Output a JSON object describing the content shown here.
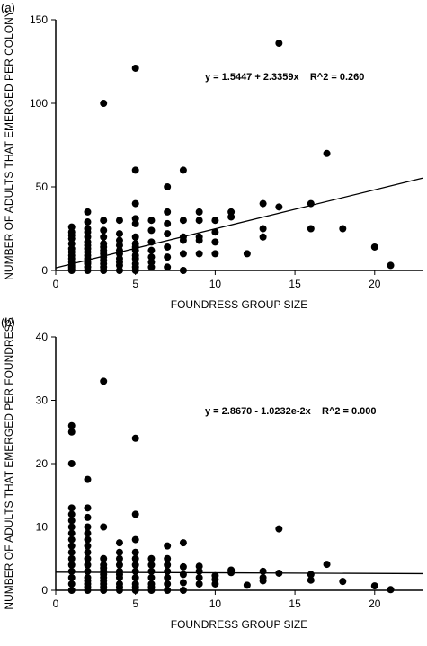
{
  "chart_data": [
    {
      "type": "scatter",
      "panel_label": "(a)",
      "xlabel": "FOUNDRESS GROUP SIZE",
      "ylabel": "NUMBER OF ADULTS THAT EMERGED PER COLONY",
      "xlim": [
        0,
        23
      ],
      "ylim": [
        0,
        150
      ],
      "x_ticks": [
        0,
        5,
        10,
        15,
        20
      ],
      "y_ticks": [
        0,
        50,
        100,
        150
      ],
      "grid": false,
      "fit_line": {
        "intercept": 1.5447,
        "slope": 2.3359
      },
      "annotation": "y = 1.5447 + 2.3359x    R^2 = 0.260",
      "points": [
        [
          1,
          0
        ],
        [
          1,
          1
        ],
        [
          1,
          2
        ],
        [
          1,
          3
        ],
        [
          1,
          5
        ],
        [
          1,
          7
        ],
        [
          1,
          9
        ],
        [
          1,
          11
        ],
        [
          1,
          13
        ],
        [
          1,
          16
        ],
        [
          1,
          19
        ],
        [
          1,
          21
        ],
        [
          1,
          23
        ],
        [
          1,
          26
        ],
        [
          2,
          0
        ],
        [
          2,
          2
        ],
        [
          2,
          4
        ],
        [
          2,
          5
        ],
        [
          2,
          7
        ],
        [
          2,
          9
        ],
        [
          2,
          11
        ],
        [
          2,
          13
        ],
        [
          2,
          15
        ],
        [
          2,
          17
        ],
        [
          2,
          20
        ],
        [
          2,
          23
        ],
        [
          2,
          25
        ],
        [
          2,
          29
        ],
        [
          2,
          35
        ],
        [
          3,
          0
        ],
        [
          3,
          2
        ],
        [
          3,
          4
        ],
        [
          3,
          6
        ],
        [
          3,
          8
        ],
        [
          3,
          10
        ],
        [
          3,
          12
        ],
        [
          3,
          14
        ],
        [
          3,
          16
        ],
        [
          3,
          20
        ],
        [
          3,
          24
        ],
        [
          3,
          30
        ],
        [
          3,
          100
        ],
        [
          4,
          0
        ],
        [
          4,
          3
        ],
        [
          4,
          5
        ],
        [
          4,
          7
        ],
        [
          4,
          10
        ],
        [
          4,
          12
        ],
        [
          4,
          15
        ],
        [
          4,
          18
        ],
        [
          4,
          22
        ],
        [
          4,
          30
        ],
        [
          5,
          0
        ],
        [
          5,
          2
        ],
        [
          5,
          4
        ],
        [
          5,
          7
        ],
        [
          5,
          9
        ],
        [
          5,
          12
        ],
        [
          5,
          14
        ],
        [
          5,
          16
        ],
        [
          5,
          20
        ],
        [
          5,
          28
        ],
        [
          5,
          31
        ],
        [
          5,
          40
        ],
        [
          5,
          60
        ],
        [
          5,
          121
        ],
        [
          6,
          2
        ],
        [
          6,
          5
        ],
        [
          6,
          8
        ],
        [
          6,
          12
        ],
        [
          6,
          17
        ],
        [
          6,
          24
        ],
        [
          6,
          30
        ],
        [
          7,
          2
        ],
        [
          7,
          8
        ],
        [
          7,
          14
        ],
        [
          7,
          22
        ],
        [
          7,
          28
        ],
        [
          7,
          35
        ],
        [
          7,
          50
        ],
        [
          8,
          0
        ],
        [
          8,
          10
        ],
        [
          8,
          18
        ],
        [
          8,
          20
        ],
        [
          8,
          30
        ],
        [
          8,
          60
        ],
        [
          9,
          10
        ],
        [
          9,
          18
        ],
        [
          9,
          20
        ],
        [
          9,
          30
        ],
        [
          9,
          35
        ],
        [
          10,
          10
        ],
        [
          10,
          17
        ],
        [
          10,
          23
        ],
        [
          10,
          30
        ],
        [
          11,
          32
        ],
        [
          11,
          35
        ],
        [
          12,
          10
        ],
        [
          13,
          20
        ],
        [
          13,
          25
        ],
        [
          13,
          40
        ],
        [
          14,
          38
        ],
        [
          14,
          136
        ],
        [
          16,
          25
        ],
        [
          16,
          40
        ],
        [
          17,
          70
        ],
        [
          18,
          25
        ],
        [
          20,
          14
        ],
        [
          21,
          3
        ]
      ]
    },
    {
      "type": "scatter",
      "panel_label": "(b)",
      "xlabel": "FOUNDRESS GROUP SIZE",
      "ylabel": "NUMBER OF ADULTS THAT EMERGED PER FOUNDRESS",
      "xlim": [
        0,
        23
      ],
      "ylim": [
        0,
        40
      ],
      "x_ticks": [
        0,
        5,
        10,
        15,
        20
      ],
      "y_ticks": [
        0,
        10,
        20,
        30,
        40
      ],
      "grid": false,
      "fit_line": {
        "intercept": 2.867,
        "slope": -0.010232
      },
      "annotation": "y = 2.8670 - 1.0232e-2x    R^2 = 0.000",
      "points": [
        [
          1,
          0
        ],
        [
          1,
          1
        ],
        [
          1,
          2
        ],
        [
          1,
          3
        ],
        [
          1,
          4
        ],
        [
          1,
          5
        ],
        [
          1,
          6
        ],
        [
          1,
          7
        ],
        [
          1,
          8
        ],
        [
          1,
          9
        ],
        [
          1,
          10
        ],
        [
          1,
          11
        ],
        [
          1,
          12
        ],
        [
          1,
          13
        ],
        [
          1,
          20
        ],
        [
          1,
          25
        ],
        [
          1,
          26
        ],
        [
          2,
          0
        ],
        [
          2,
          0.5
        ],
        [
          2,
          1
        ],
        [
          2,
          1.5
        ],
        [
          2,
          2
        ],
        [
          2,
          3
        ],
        [
          2,
          4
        ],
        [
          2,
          5
        ],
        [
          2,
          6
        ],
        [
          2,
          7
        ],
        [
          2,
          8
        ],
        [
          2,
          9
        ],
        [
          2,
          10
        ],
        [
          2,
          11.5
        ],
        [
          2,
          13
        ],
        [
          2,
          17.5
        ],
        [
          3,
          0
        ],
        [
          3,
          0.5
        ],
        [
          3,
          1
        ],
        [
          3,
          1.5
        ],
        [
          3,
          2
        ],
        [
          3,
          2.5
        ],
        [
          3,
          3
        ],
        [
          3,
          3.5
        ],
        [
          3,
          4
        ],
        [
          3,
          5
        ],
        [
          3,
          10
        ],
        [
          3,
          33
        ],
        [
          4,
          0
        ],
        [
          4,
          0.5
        ],
        [
          4,
          1
        ],
        [
          4,
          2
        ],
        [
          4,
          2.5
        ],
        [
          4,
          3
        ],
        [
          4,
          4
        ],
        [
          4,
          5
        ],
        [
          4,
          6
        ],
        [
          4,
          7.5
        ],
        [
          5,
          0
        ],
        [
          5,
          0.5
        ],
        [
          5,
          1
        ],
        [
          5,
          2
        ],
        [
          5,
          3
        ],
        [
          5,
          4
        ],
        [
          5,
          5
        ],
        [
          5,
          6
        ],
        [
          5,
          8
        ],
        [
          5,
          12
        ],
        [
          5,
          24
        ],
        [
          6,
          0
        ],
        [
          6,
          0.5
        ],
        [
          6,
          1
        ],
        [
          6,
          2
        ],
        [
          6,
          3
        ],
        [
          6,
          4
        ],
        [
          6,
          5
        ],
        [
          7,
          0
        ],
        [
          7,
          1
        ],
        [
          7,
          2
        ],
        [
          7,
          3
        ],
        [
          7,
          4
        ],
        [
          7,
          5
        ],
        [
          7,
          7
        ],
        [
          8,
          0
        ],
        [
          8,
          1.2
        ],
        [
          8,
          2.5
        ],
        [
          8,
          3.7
        ],
        [
          8,
          7.5
        ],
        [
          9,
          1
        ],
        [
          9,
          2
        ],
        [
          9,
          3
        ],
        [
          9,
          3.8
        ],
        [
          10,
          1
        ],
        [
          10,
          1.7
        ],
        [
          10,
          2.3
        ],
        [
          11,
          2.8
        ],
        [
          11,
          3.2
        ],
        [
          12,
          0.8
        ],
        [
          13,
          1.5
        ],
        [
          13,
          2
        ],
        [
          13,
          3
        ],
        [
          14,
          2.7
        ],
        [
          14,
          9.7
        ],
        [
          16,
          1.6
        ],
        [
          16,
          2.5
        ],
        [
          17,
          4.1
        ],
        [
          18,
          1.4
        ],
        [
          20,
          0.7
        ],
        [
          21,
          0.1
        ]
      ]
    }
  ]
}
